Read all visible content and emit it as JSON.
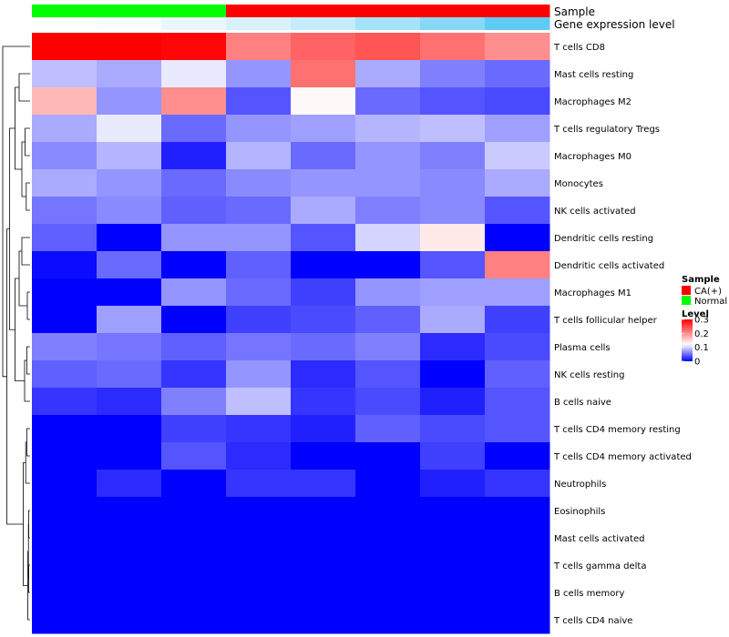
{
  "chart_data": {
    "type": "heatmap",
    "annotation_labels": {
      "sample": "Sample",
      "expression": "Gene expression level"
    },
    "columns": [
      {
        "sample": "Normal",
        "expression_level": 0.0
      },
      {
        "sample": "Normal",
        "expression_level": 0.03
      },
      {
        "sample": "Normal",
        "expression_level": 0.12
      },
      {
        "sample": "CA(+)",
        "expression_level": 0.22
      },
      {
        "sample": "CA(+)",
        "expression_level": 0.32
      },
      {
        "sample": "CA(+)",
        "expression_level": 0.5
      },
      {
        "sample": "CA(+)",
        "expression_level": 0.68
      },
      {
        "sample": "CA(+)",
        "expression_level": 0.9
      }
    ],
    "rows": [
      "T cells CD8",
      "Mast cells resting",
      "Macrophages M2",
      "T cells regulatory  Tregs",
      "Macrophages M0",
      "Monocytes",
      "NK cells activated",
      "Dendritic cells resting",
      "Dendritic cells activated",
      "Macrophages M1",
      "T cells follicular helper",
      "Plasma cells",
      "NK cells resting",
      "B cells naive",
      "T cells CD4 memory resting",
      "T cells CD4 memory activated",
      "Neutrophils",
      "Eosinophils",
      "Mast cells activated",
      "T cells gamma delta",
      "B cells memory",
      "T cells CD4 naive"
    ],
    "values": [
      [
        0.3,
        0.3,
        0.295,
        0.21,
        0.23,
        0.24,
        0.22,
        0.2
      ],
      [
        0.09,
        0.08,
        0.11,
        0.07,
        0.22,
        0.08,
        0.06,
        0.05
      ],
      [
        0.17,
        0.07,
        0.2,
        0.04,
        0.125,
        0.05,
        0.04,
        0.035
      ],
      [
        0.08,
        0.11,
        0.05,
        0.07,
        0.075,
        0.085,
        0.09,
        0.075
      ],
      [
        0.065,
        0.085,
        0.015,
        0.085,
        0.05,
        0.07,
        0.06,
        0.095
      ],
      [
        0.08,
        0.07,
        0.05,
        0.065,
        0.07,
        0.07,
        0.065,
        0.08
      ],
      [
        0.055,
        0.065,
        0.045,
        0.05,
        0.08,
        0.06,
        0.065,
        0.04
      ],
      [
        0.045,
        0.0,
        0.07,
        0.07,
        0.04,
        0.1,
        0.135,
        0.0
      ],
      [
        0.005,
        0.05,
        0.0,
        0.045,
        0.0,
        0.0,
        0.04,
        0.21
      ],
      [
        0.0,
        0.0,
        0.07,
        0.05,
        0.03,
        0.07,
        0.075,
        0.075
      ],
      [
        0.0,
        0.075,
        0.0,
        0.03,
        0.035,
        0.045,
        0.08,
        0.03
      ],
      [
        0.06,
        0.055,
        0.045,
        0.055,
        0.05,
        0.06,
        0.02,
        0.035
      ],
      [
        0.045,
        0.05,
        0.025,
        0.07,
        0.02,
        0.04,
        0.0,
        0.045
      ],
      [
        0.025,
        0.02,
        0.06,
        0.09,
        0.025,
        0.035,
        0.015,
        0.04
      ],
      [
        0.0,
        0.0,
        0.03,
        0.025,
        0.015,
        0.045,
        0.035,
        0.04
      ],
      [
        0.0,
        0.0,
        0.04,
        0.02,
        0.0,
        0.0,
        0.03,
        0.0
      ],
      [
        0.0,
        0.02,
        0.0,
        0.025,
        0.025,
        0.0,
        0.015,
        0.025
      ],
      [
        0.0,
        0.0,
        0.0,
        0.0,
        0.0,
        0.0,
        0.0,
        0.0
      ],
      [
        0.0,
        0.0,
        0.0,
        0.0,
        0.0,
        0.0,
        0.0,
        0.0
      ],
      [
        0.0,
        0.0,
        0.0,
        0.0,
        0.0,
        0.0,
        0.0,
        0.0
      ],
      [
        0.0,
        0.0,
        0.0,
        0.0,
        0.0,
        0.0,
        0.0,
        0.0
      ],
      [
        0.0,
        0.0,
        0.0,
        0.0,
        0.0,
        0.0,
        0.0,
        0.0
      ]
    ],
    "value_range": [
      0,
      0.3
    ],
    "colors": {
      "low": "#0000ff",
      "mid": "#ffffff",
      "high": "#ff0000",
      "mid_value": 0.12
    },
    "sample_colors": {
      "CA(+)": "#ff0000",
      "Normal": "#00ff00"
    },
    "expression_colors": {
      "low": "#ffffff",
      "high": "#4dc5f2"
    },
    "legend": {
      "sample_title": "Sample",
      "sample_entries": [
        "CA(+)",
        "Normal"
      ],
      "level_title": "Level",
      "level_ticks": [
        "0.3",
        "0.2",
        "0.1",
        "0"
      ],
      "level_tick_values": [
        0.3,
        0.2,
        0.1,
        0
      ]
    },
    "dendrogram": {
      "leaves_order": [
        0,
        1,
        2,
        3,
        4,
        5,
        6,
        7,
        8,
        9,
        10,
        11,
        12,
        13,
        14,
        15,
        16,
        17,
        18,
        19,
        20,
        21
      ],
      "merges": [
        [
          3,
          4,
          0.18
        ],
        [
          5,
          6,
          0.14
        ],
        [
          -1,
          -2,
          0.3
        ],
        [
          1,
          2,
          0.4
        ],
        [
          -4,
          -3,
          0.55
        ],
        [
          7,
          8,
          0.3
        ],
        [
          9,
          10,
          0.1
        ],
        [
          -6,
          -7,
          0.4
        ],
        [
          11,
          12,
          0.12
        ],
        [
          -9,
          13,
          0.2
        ],
        [
          -8,
          -10,
          0.55
        ],
        [
          -5,
          -11,
          0.75
        ],
        [
          14,
          15,
          0.12
        ],
        [
          16,
          -13,
          0.16
        ],
        [
          17,
          18,
          0.05
        ],
        [
          19,
          20,
          0.05
        ],
        [
          -15,
          -16,
          0.06
        ],
        [
          -17,
          21,
          0.08
        ],
        [
          -14,
          -18,
          0.25
        ],
        [
          -12,
          -19,
          0.85
        ],
        [
          0,
          -20,
          1.0
        ]
      ]
    }
  }
}
